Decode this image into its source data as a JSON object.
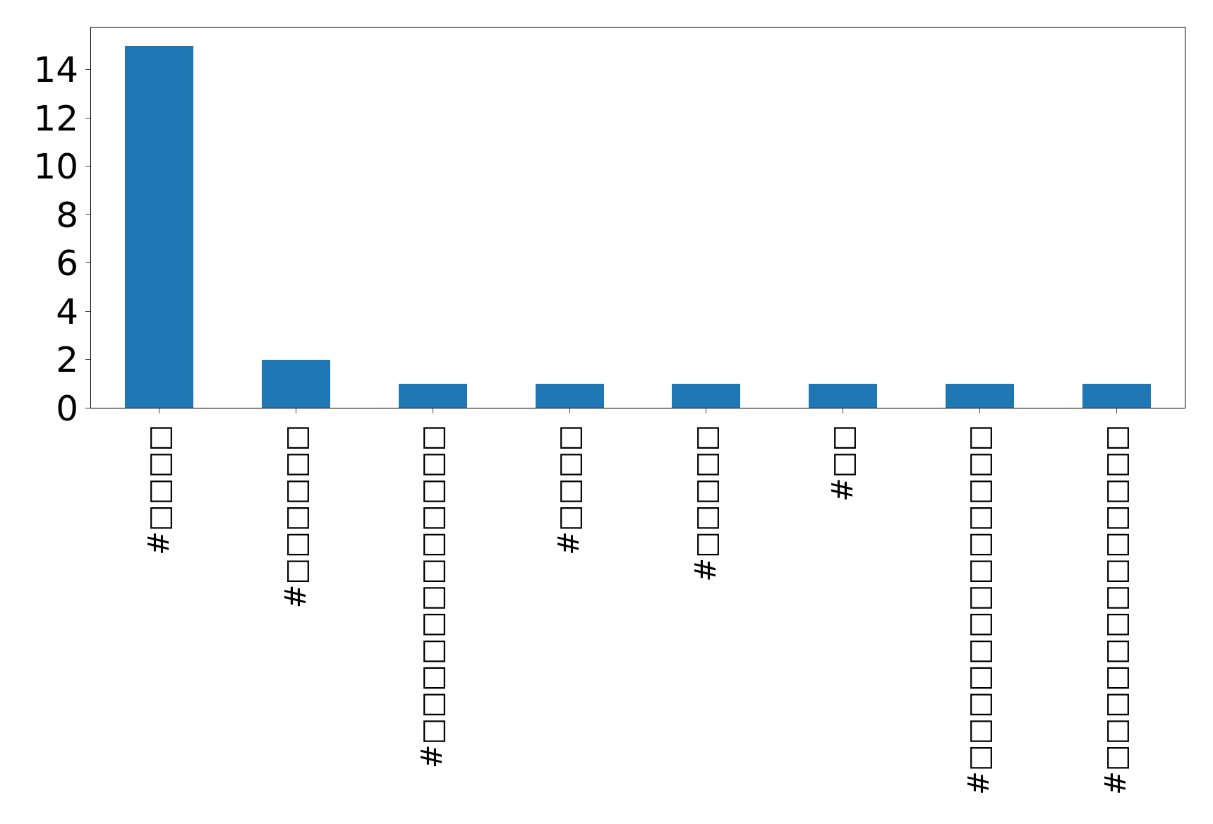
{
  "chart_data": {
    "type": "bar",
    "categories": [
      "#□□□□",
      "#□□□□□□",
      "#□□□□□□□□□□□□",
      "#□□□□",
      "#□□□□□",
      "#□□",
      "#□□□□□□□□□□□□□",
      "#□□□□□□□□□□□□□"
    ],
    "values": [
      15,
      2,
      1,
      1,
      1,
      1,
      1,
      1
    ],
    "color": "#1f77b4",
    "ylim": [
      0,
      15.75
    ],
    "yticks": [
      0,
      2,
      4,
      6,
      8,
      10,
      12,
      14
    ]
  }
}
